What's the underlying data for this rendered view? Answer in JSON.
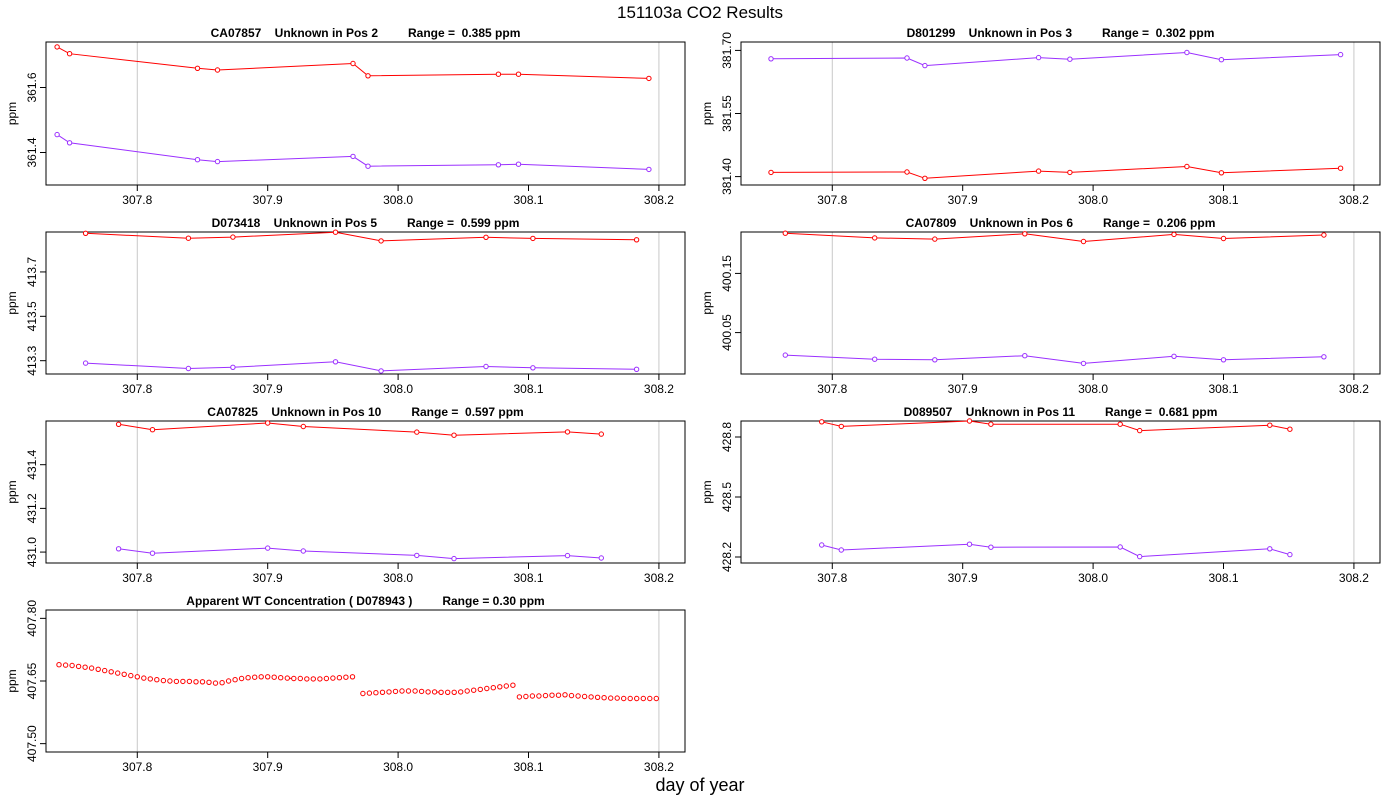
{
  "page": {
    "title": "151103a  CO2 Results",
    "xlabel": "day of year"
  },
  "colors": {
    "series1": "#ff0000",
    "series2": "#9b30ff",
    "grid": "#c8c8c8",
    "frame": "#000000"
  },
  "chart_data": [
    {
      "type": "line",
      "title": "CA07857    Unknown in Pos 2         Range =  0.385 ppm",
      "xlabel": "",
      "ylabel": "ppm",
      "xlim": [
        307.73,
        308.22
      ],
      "ylim": [
        361.3,
        361.74
      ],
      "xticks": [
        307.8,
        307.9,
        308.0,
        308.1,
        308.2
      ],
      "xtick_labels": [
        "307.8",
        "307.9",
        "308.0",
        "308.1",
        "308.2"
      ],
      "yticks": [
        361.4,
        361.6
      ],
      "ytick_labels": [
        "361.4",
        "361.6"
      ],
      "grid_x": [
        307.8,
        308.2
      ],
      "series": [
        {
          "name": "upper",
          "color": "#ff0000",
          "x": [
            307.7385,
            307.7481,
            307.8462,
            307.8615,
            307.9654,
            307.9769,
            308.0769,
            308.0923,
            308.1923
          ],
          "y": [
            361.725,
            361.704,
            361.659,
            361.654,
            361.674,
            361.636,
            361.641,
            361.641,
            361.628
          ]
        },
        {
          "name": "lower",
          "color": "#9b30ff",
          "x": [
            307.7385,
            307.7481,
            307.8462,
            307.8615,
            307.9654,
            307.9769,
            308.0769,
            308.0923,
            308.1923
          ],
          "y": [
            361.455,
            361.43,
            361.378,
            361.372,
            361.388,
            361.358,
            361.362,
            361.364,
            361.348
          ]
        }
      ]
    },
    {
      "type": "line",
      "title": "D801299    Unknown in Pos 3         Range =  0.302 ppm",
      "xlabel": "",
      "ylabel": "ppm",
      "xlim": [
        307.73,
        308.22
      ],
      "ylim": [
        381.38,
        381.72
      ],
      "xticks": [
        307.8,
        307.9,
        308.0,
        308.1,
        308.2
      ],
      "xtick_labels": [
        "307.8",
        "307.9",
        "308.0",
        "308.1",
        "308.2"
      ],
      "yticks": [
        381.4,
        381.55,
        381.7
      ],
      "ytick_labels": [
        "381.40",
        "381.55",
        "381.70"
      ],
      "grid_x": [
        307.8,
        308.2
      ],
      "series": [
        {
          "name": "upper",
          "color": "#9b30ff",
          "x": [
            307.753,
            307.8573,
            307.871,
            307.9582,
            307.9822,
            308.0719,
            308.0984,
            308.1898
          ],
          "y": [
            381.68,
            381.682,
            381.664,
            381.683,
            381.679,
            381.695,
            381.678,
            381.69
          ]
        },
        {
          "name": "lower",
          "color": "#ff0000",
          "x": [
            307.753,
            307.8573,
            307.871,
            307.9582,
            307.9822,
            308.0719,
            308.0984,
            308.1898
          ],
          "y": [
            381.41,
            381.411,
            381.396,
            381.413,
            381.41,
            381.424,
            381.409,
            381.42
          ]
        }
      ]
    },
    {
      "type": "line",
      "title": "D073418    Unknown in Pos 5         Range =  0.599 ppm",
      "xlabel": "",
      "ylabel": "ppm",
      "xlim": [
        307.73,
        308.22
      ],
      "ylim": [
        413.24,
        413.88
      ],
      "xticks": [
        307.8,
        307.9,
        308.0,
        308.1,
        308.2
      ],
      "xtick_labels": [
        "307.8",
        "307.9",
        "308.0",
        "308.1",
        "308.2"
      ],
      "yticks": [
        413.3,
        413.5,
        413.7
      ],
      "ytick_labels": [
        "413.3",
        "413.5",
        "413.7"
      ],
      "grid_x": [
        307.8,
        308.2
      ],
      "series": [
        {
          "name": "upper",
          "color": "#ff0000",
          "x": [
            307.7604,
            307.8392,
            307.8733,
            307.952,
            307.987,
            308.0674,
            308.1034,
            308.1829
          ],
          "y": [
            413.874,
            413.852,
            413.857,
            413.879,
            413.84,
            413.856,
            413.851,
            413.845
          ]
        },
        {
          "name": "lower",
          "color": "#9b30ff",
          "x": [
            307.7604,
            307.8392,
            307.8733,
            307.952,
            307.987,
            308.0674,
            308.1034,
            308.1829
          ],
          "y": [
            413.289,
            413.265,
            413.27,
            413.295,
            413.254,
            413.274,
            413.268,
            413.261
          ]
        }
      ]
    },
    {
      "type": "line",
      "title": "CA07809    Unknown in Pos 6         Range =  0.206 ppm",
      "xlabel": "",
      "ylabel": "ppm",
      "xlim": [
        307.73,
        308.22
      ],
      "ylim": [
        399.98,
        400.22
      ],
      "xticks": [
        307.8,
        307.9,
        308.0,
        308.1,
        308.2
      ],
      "xtick_labels": [
        "307.8",
        "307.9",
        "308.0",
        "308.1",
        "308.2"
      ],
      "yticks": [
        400.05,
        400.15
      ],
      "ytick_labels": [
        "400.05",
        "400.15"
      ],
      "grid_x": [
        307.8,
        308.2
      ],
      "series": [
        {
          "name": "upper",
          "color": "#ff0000",
          "x": [
            307.764,
            307.8325,
            307.8786,
            307.9476,
            307.9926,
            308.062,
            308.1,
            308.177
          ],
          "y": [
            400.218,
            400.21,
            400.208,
            400.217,
            400.204,
            400.216,
            400.209,
            400.215
          ]
        },
        {
          "name": "lower",
          "color": "#9b30ff",
          "x": [
            307.764,
            307.8325,
            307.8786,
            307.9476,
            307.9926,
            308.062,
            308.1,
            308.177
          ],
          "y": [
            400.012,
            400.005,
            400.004,
            400.011,
            399.998,
            400.01,
            400.004,
            400.009
          ]
        }
      ]
    },
    {
      "type": "line",
      "title": "CA07825    Unknown in Pos 10         Range =  0.597 ppm",
      "xlabel": "",
      "ylabel": "ppm",
      "xlim": [
        307.73,
        308.22
      ],
      "ylim": [
        430.95,
        431.6
      ],
      "xticks": [
        307.8,
        307.9,
        308.0,
        308.1,
        308.2
      ],
      "xtick_labels": [
        "307.8",
        "307.9",
        "308.0",
        "308.1",
        "308.2"
      ],
      "yticks": [
        431.0,
        431.2,
        431.4
      ],
      "ytick_labels": [
        "431.0",
        "431.2",
        "431.4"
      ],
      "grid_x": [
        307.8,
        308.2
      ],
      "series": [
        {
          "name": "upper",
          "color": "#ff0000",
          "x": [
            307.7857,
            307.8117,
            307.9,
            307.9273,
            308.0143,
            308.0429,
            308.1299,
            308.1558
          ],
          "y": [
            431.585,
            431.56,
            431.591,
            431.575,
            431.549,
            431.535,
            431.55,
            431.54
          ]
        },
        {
          "name": "lower",
          "color": "#9b30ff",
          "x": [
            307.7857,
            307.8117,
            307.9,
            307.9273,
            308.0143,
            308.0429,
            308.1299,
            308.1558
          ],
          "y": [
            431.015,
            430.995,
            431.018,
            431.005,
            430.985,
            430.97,
            430.984,
            430.973
          ]
        }
      ]
    },
    {
      "type": "line",
      "title": "D089507    Unknown in Pos 11         Range =  0.681 ppm",
      "xlabel": "",
      "ylabel": "ppm",
      "xlim": [
        307.73,
        308.22
      ],
      "ylim": [
        428.17,
        428.88
      ],
      "xticks": [
        307.8,
        307.9,
        308.0,
        308.1,
        308.2
      ],
      "xtick_labels": [
        "307.8",
        "307.9",
        "308.0",
        "308.1",
        "308.2"
      ],
      "yticks": [
        428.2,
        428.5,
        428.8
      ],
      "ytick_labels": [
        "428.2",
        "428.5",
        "428.8"
      ],
      "grid_x": [
        307.8,
        308.2
      ],
      "series": [
        {
          "name": "upper",
          "color": "#ff0000",
          "x": [
            307.7919,
            307.8069,
            307.9052,
            307.9216,
            308.0208,
            308.0357,
            308.1355,
            308.1509
          ],
          "y": [
            428.876,
            428.853,
            428.88,
            428.864,
            428.864,
            428.832,
            428.859,
            428.839
          ]
        },
        {
          "name": "lower",
          "color": "#9b30ff",
          "x": [
            307.7919,
            307.8069,
            307.9052,
            307.9216,
            308.0208,
            308.0357,
            308.1355,
            308.1509
          ],
          "y": [
            428.26,
            428.235,
            428.264,
            428.249,
            428.25,
            428.202,
            428.241,
            428.212
          ]
        }
      ]
    },
    {
      "type": "scatter",
      "title": "Apparent WT Concentration ( D078943 )         Range = 0.30 ppm",
      "xlabel": "",
      "ylabel": "ppm",
      "xlim": [
        307.73,
        308.22
      ],
      "ylim": [
        407.48,
        407.82
      ],
      "xticks": [
        307.8,
        307.9,
        308.0,
        308.1,
        308.2
      ],
      "xtick_labels": [
        "307.8",
        "307.9",
        "308.0",
        "308.1",
        "308.2"
      ],
      "yticks": [
        407.5,
        407.65,
        407.8
      ],
      "ytick_labels": [
        "407.50",
        "407.65",
        "407.80"
      ],
      "grid_x": [
        307.8,
        308.2
      ],
      "series": [
        {
          "name": "wt",
          "color": "#ff0000",
          "line_after": [
            35,
            57
          ],
          "x": [
            307.74,
            307.745,
            307.75,
            307.755,
            307.76,
            307.765,
            307.77,
            307.775,
            307.78,
            307.785,
            307.79,
            307.795,
            307.8,
            307.805,
            307.81,
            307.815,
            307.82,
            307.825,
            307.83,
            307.835,
            307.84,
            307.845,
            307.85,
            307.855,
            307.86,
            307.865,
            307.87,
            307.875,
            307.88,
            307.885,
            307.89,
            307.895,
            307.9,
            307.905,
            307.91,
            307.915,
            307.92,
            307.925,
            307.93,
            307.935,
            307.94,
            307.945,
            307.95,
            307.955,
            307.96,
            307.965,
            307.973,
            307.978,
            307.983,
            307.988,
            307.993,
            307.998,
            308.003,
            308.008,
            308.013,
            308.018,
            308.023,
            308.028,
            308.033,
            308.038,
            308.043,
            308.048,
            308.053,
            308.058,
            308.063,
            308.068,
            308.073,
            308.078,
            308.083,
            308.088,
            308.093,
            308.098,
            308.103,
            308.108,
            308.113,
            308.118,
            308.123,
            308.128,
            308.133,
            308.138,
            308.143,
            308.148,
            308.153,
            308.158,
            308.163,
            308.168,
            308.173,
            308.178,
            308.183,
            308.188,
            308.193,
            308.198
          ],
          "y": [
            407.689,
            407.688,
            407.687,
            407.685,
            407.683,
            407.681,
            407.678,
            407.675,
            407.672,
            407.669,
            407.666,
            407.663,
            407.66,
            407.657,
            407.655,
            407.653,
            407.651,
            407.65,
            407.649,
            407.649,
            407.649,
            407.648,
            407.648,
            407.647,
            407.645,
            407.646,
            407.65,
            407.653,
            407.656,
            407.658,
            407.659,
            407.66,
            407.66,
            407.659,
            407.658,
            407.657,
            407.656,
            407.656,
            407.655,
            407.655,
            407.655,
            407.656,
            407.657,
            407.658,
            407.659,
            407.66,
            407.62,
            407.621,
            407.622,
            407.623,
            407.624,
            407.625,
            407.626,
            407.626,
            407.626,
            407.625,
            407.624,
            407.624,
            407.623,
            407.623,
            407.623,
            407.624,
            407.626,
            407.628,
            407.63,
            407.632,
            407.634,
            407.636,
            407.638,
            407.64,
            407.612,
            407.613,
            407.614,
            407.614,
            407.615,
            407.616,
            407.616,
            407.617,
            407.615,
            407.614,
            407.613,
            407.612,
            407.611,
            407.61,
            407.609,
            407.609,
            407.608,
            407.608,
            407.608,
            407.608,
            407.608,
            407.608
          ]
        }
      ]
    }
  ]
}
